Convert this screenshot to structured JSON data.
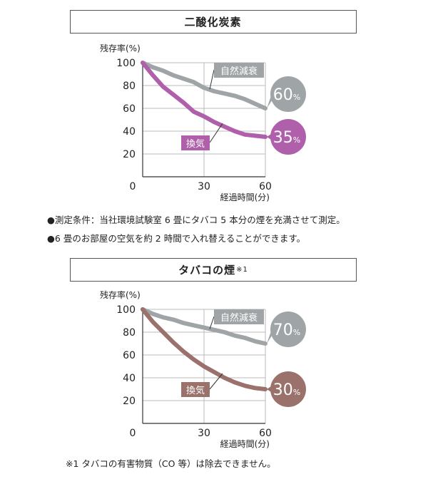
{
  "sections": [
    {
      "title": "二酸化炭素",
      "title_note": ""
    },
    {
      "title": "タバコの煙",
      "title_note": "※1"
    }
  ],
  "notes": [
    "●測定条件：当社環境試験室 6 畳にタバコ 5 本分の煙を充満させて測定。",
    "●6 畳のお部屋の空気を約 2 時間で入れ替えることができます。"
  ],
  "footnote": "※1 タバコの有害物質（CO 等）は除去できません。",
  "colors": {
    "natural": "#9fa4a7",
    "co2_vent": "#b05fab",
    "smoke_vent": "#9a716b",
    "axis": "#333333",
    "grid": "#bbbbbb"
  },
  "chart_data": [
    {
      "type": "line",
      "title": "二酸化炭素",
      "ylabel": "残存率(%)",
      "xlabel": "経過時間(分)",
      "xlim": [
        0,
        60
      ],
      "ylim": [
        0,
        100
      ],
      "xticks": [
        0,
        30,
        60
      ],
      "yticks": [
        20,
        40,
        60,
        80,
        100
      ],
      "x_origin_label": "0",
      "grid": true,
      "series": [
        {
          "name": "自然減衰",
          "end_label": "60",
          "end_unit": "%",
          "color_key": "natural",
          "x": [
            0,
            5,
            10,
            15,
            20,
            25,
            30,
            35,
            40,
            45,
            50,
            55,
            60
          ],
          "y": [
            100,
            96,
            93,
            89,
            86,
            83,
            78,
            75,
            73,
            71,
            68,
            64,
            60
          ]
        },
        {
          "name": "換気",
          "end_label": "35",
          "end_unit": "%",
          "color_key": "co2_vent",
          "x": [
            0,
            5,
            10,
            15,
            20,
            25,
            30,
            35,
            40,
            45,
            50,
            55,
            60
          ],
          "y": [
            100,
            89,
            79,
            72,
            65,
            57,
            53,
            48,
            44,
            40,
            37,
            36,
            35
          ]
        }
      ]
    },
    {
      "type": "line",
      "title": "タバコの煙",
      "ylabel": "残存率(%)",
      "xlabel": "経過時間(分)",
      "xlim": [
        0,
        60
      ],
      "ylim": [
        0,
        100
      ],
      "xticks": [
        0,
        30,
        60
      ],
      "yticks": [
        20,
        40,
        60,
        80,
        100
      ],
      "x_origin_label": "0",
      "grid": true,
      "series": [
        {
          "name": "自然減衰",
          "end_label": "70",
          "end_unit": "%",
          "color_key": "natural",
          "x": [
            0,
            5,
            10,
            15,
            20,
            25,
            30,
            35,
            40,
            45,
            50,
            55,
            60
          ],
          "y": [
            100,
            96,
            93,
            91,
            88,
            86,
            84,
            82,
            80,
            77,
            75,
            72,
            70
          ]
        },
        {
          "name": "換気",
          "end_label": "30",
          "end_unit": "%",
          "color_key": "smoke_vent",
          "x": [
            0,
            5,
            10,
            15,
            20,
            25,
            30,
            35,
            40,
            45,
            50,
            55,
            60
          ],
          "y": [
            100,
            89,
            80,
            71,
            63,
            56,
            50,
            45,
            40,
            36,
            33,
            31,
            30
          ]
        }
      ]
    }
  ]
}
